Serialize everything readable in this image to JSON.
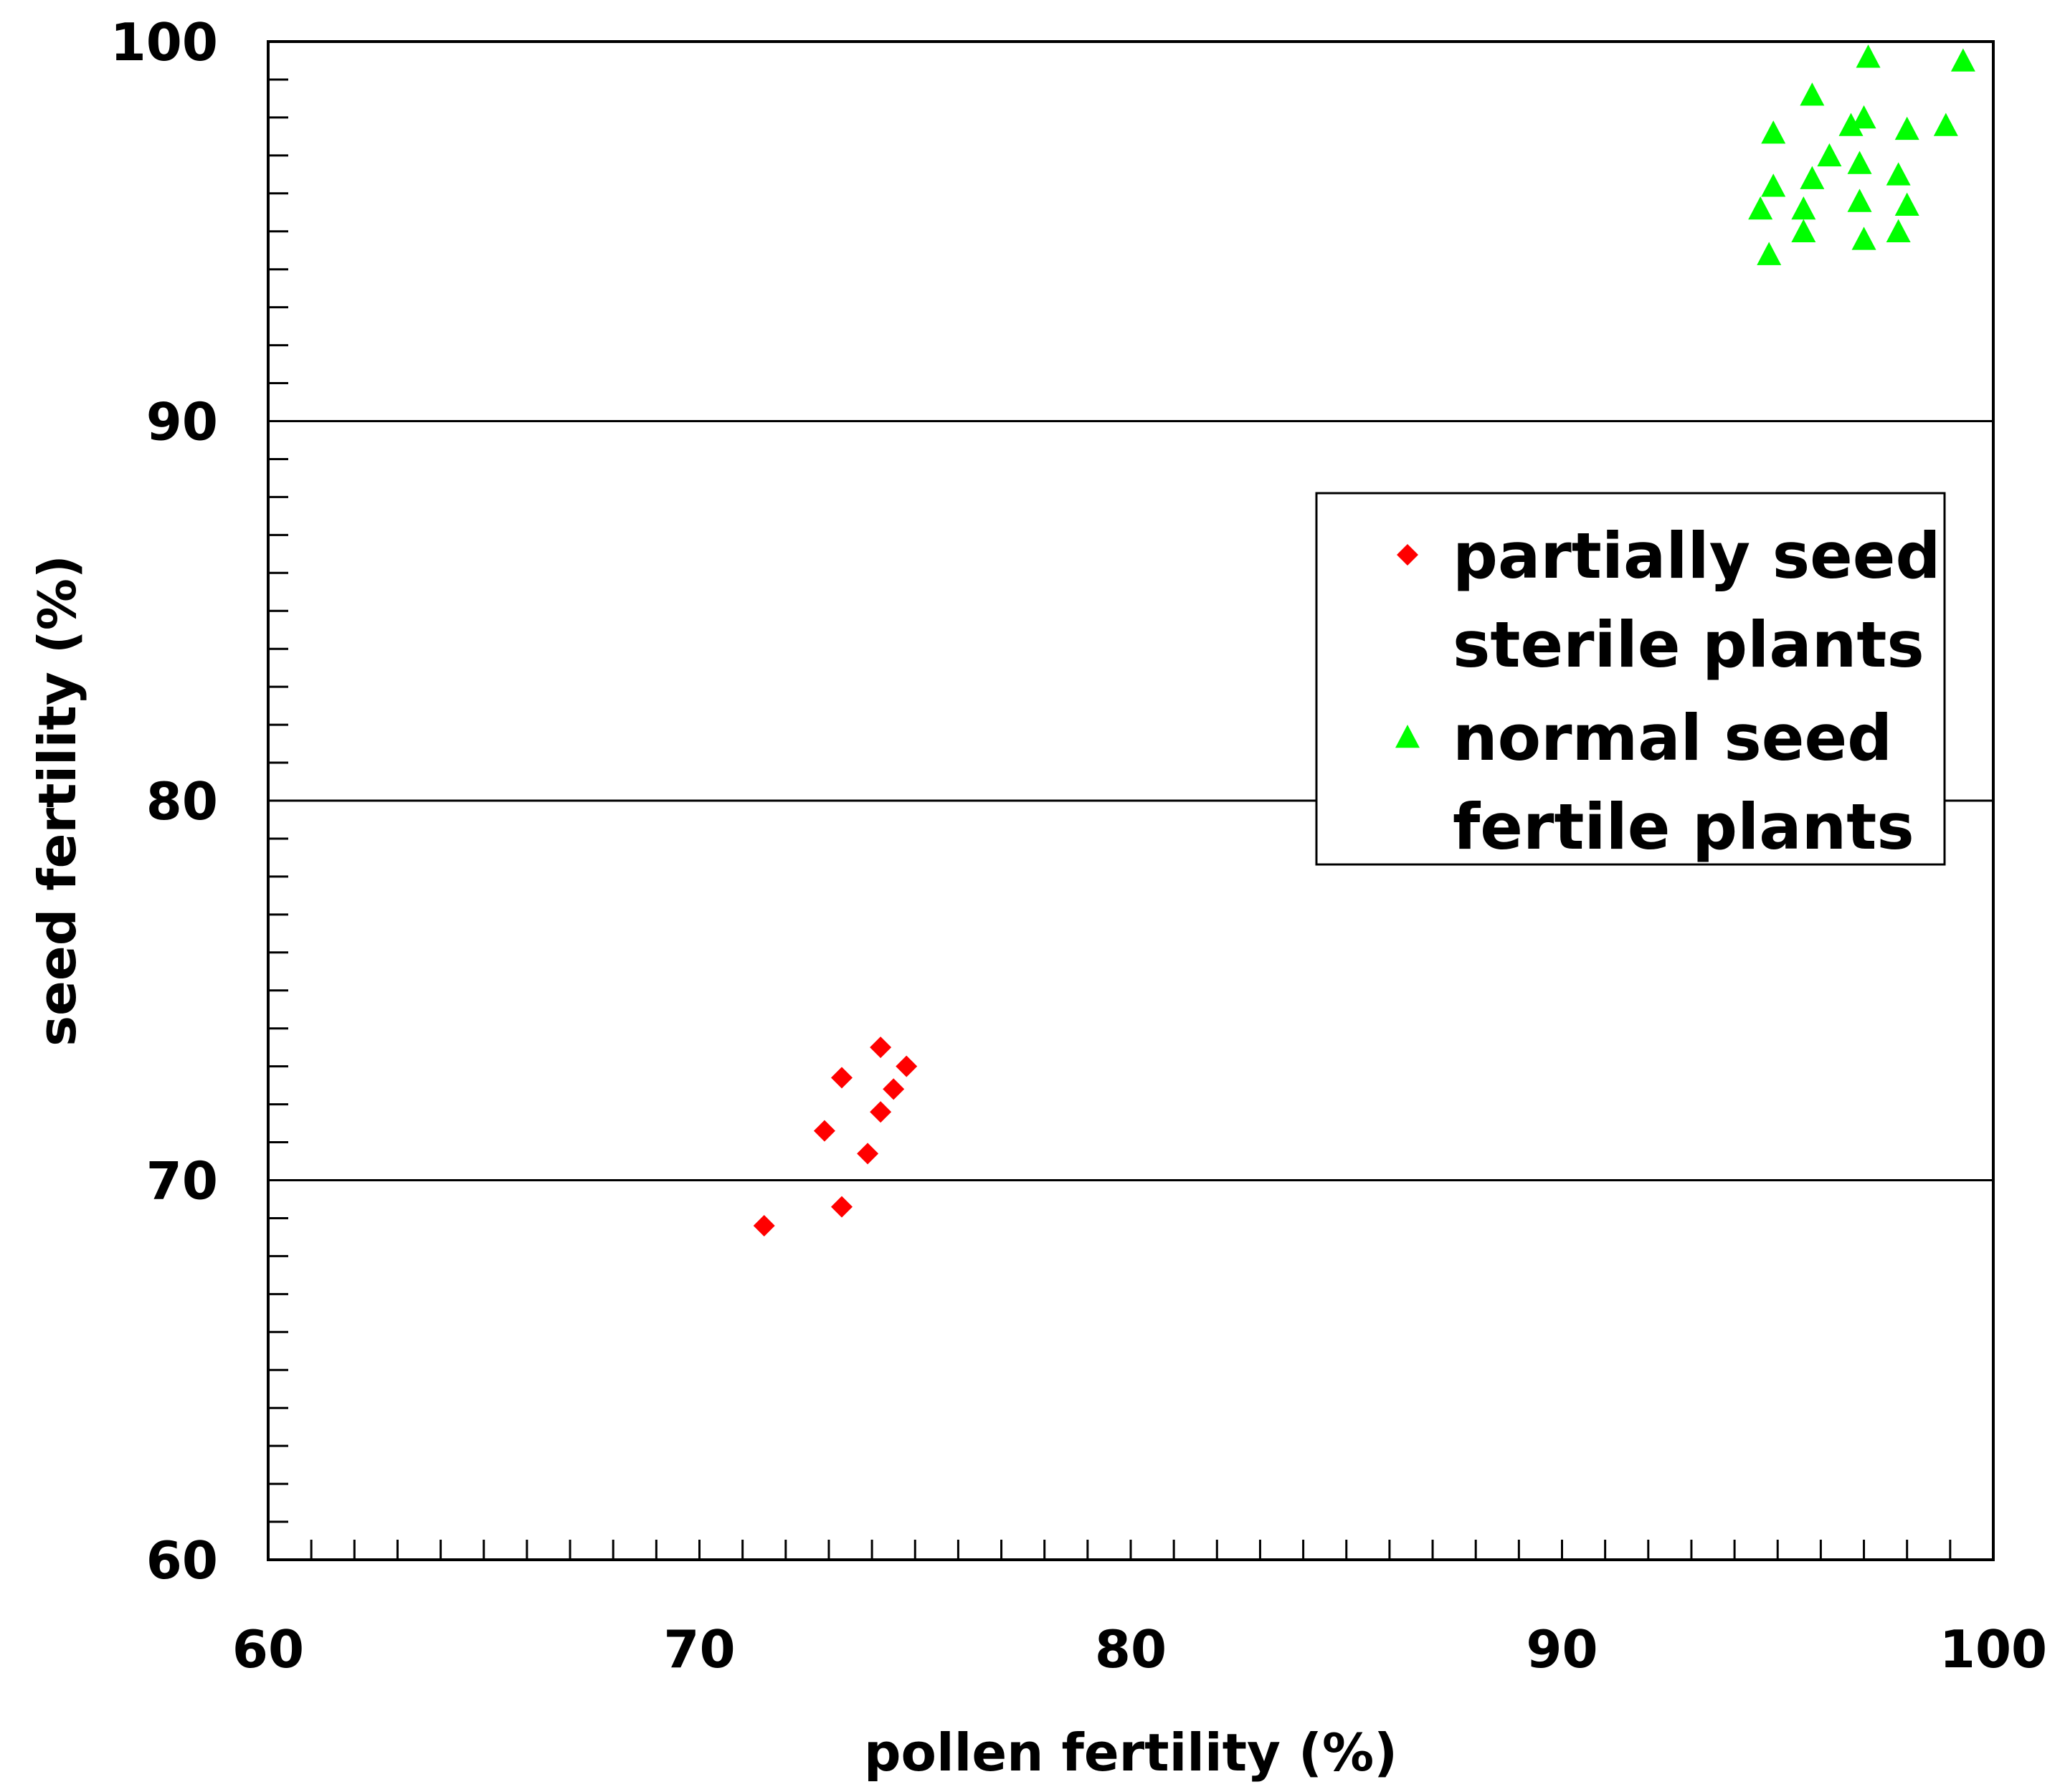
{
  "chart_data": {
    "type": "scatter",
    "title": "",
    "xlabel": "pollen fertility (%)",
    "ylabel": "seed fertility (%)",
    "xlim": [
      60,
      100
    ],
    "ylim": [
      60,
      100
    ],
    "xticks": [
      "60",
      "70",
      "80",
      "90",
      "100"
    ],
    "yticks": [
      "60",
      "70",
      "80",
      "90",
      "100"
    ],
    "grid": "horizontal major lines",
    "legend_position": "right",
    "series": [
      {
        "name": "partially seed sterile plants",
        "legend_lines": [
          "partially seed",
          "sterile plants"
        ],
        "marker": "diamond",
        "color": "#ff0000",
        "points": [
          [
            71.5,
            68.8
          ],
          [
            73.3,
            69.3
          ],
          [
            73.9,
            70.7
          ],
          [
            72.9,
            71.3
          ],
          [
            74.2,
            71.8
          ],
          [
            74.5,
            72.4
          ],
          [
            73.3,
            72.7
          ],
          [
            74.8,
            73.0
          ],
          [
            74.2,
            73.5
          ]
        ]
      },
      {
        "name": "normal seed fertile plants",
        "legend_lines": [
          "normal seed",
          "fertile plants"
        ],
        "marker": "triangle",
        "color": "#00ff00",
        "points": [
          [
            94.8,
            94.4
          ],
          [
            95.6,
            95.0
          ],
          [
            97.0,
            94.8
          ],
          [
            97.8,
            95.0
          ],
          [
            94.6,
            95.6
          ],
          [
            95.6,
            95.6
          ],
          [
            96.9,
            95.8
          ],
          [
            98.0,
            95.7
          ],
          [
            94.9,
            96.2
          ],
          [
            95.8,
            96.4
          ],
          [
            97.8,
            96.5
          ],
          [
            96.9,
            96.8
          ],
          [
            96.2,
            97.0
          ],
          [
            94.9,
            97.6
          ],
          [
            96.7,
            97.8
          ],
          [
            97.0,
            98.0
          ],
          [
            98.0,
            97.7
          ],
          [
            98.9,
            97.8
          ],
          [
            95.8,
            98.6
          ],
          [
            97.1,
            99.6
          ],
          [
            99.3,
            99.5
          ]
        ]
      }
    ]
  }
}
